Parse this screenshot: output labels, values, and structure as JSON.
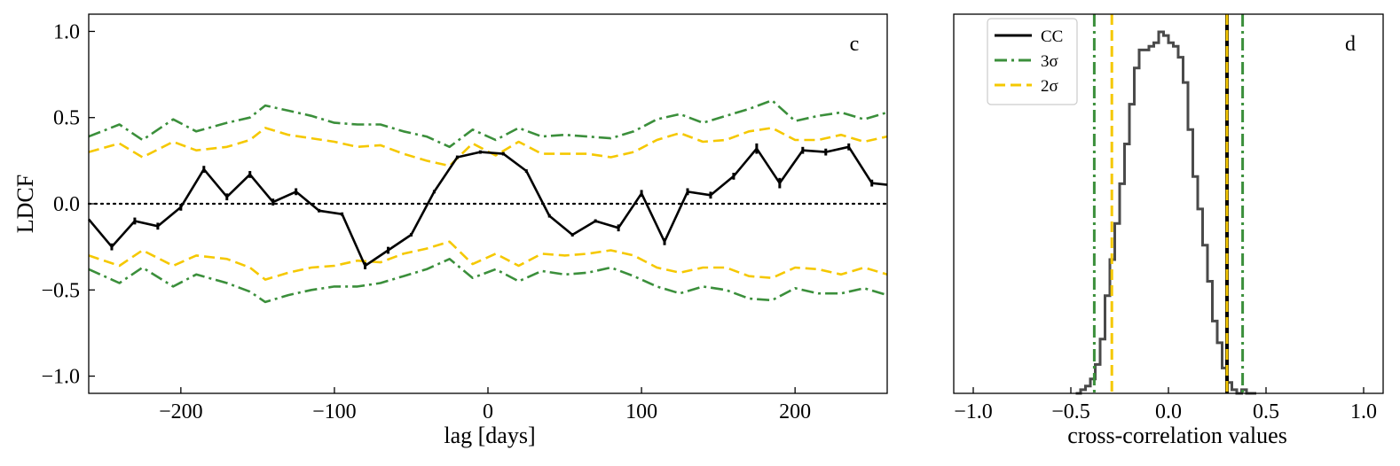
{
  "chart_data": [
    {
      "panel": "c",
      "type": "line",
      "xlabel": "lag [days]",
      "ylabel": "LDCF",
      "xlim": [
        -260,
        260
      ],
      "ylim": [
        -1.1,
        1.1
      ],
      "xticks": [
        -200,
        -100,
        0,
        100,
        200
      ],
      "xtick_labels": [
        "−200",
        "−100",
        "0",
        "100",
        "200"
      ],
      "yticks": [
        -1.0,
        -0.5,
        0.0,
        0.5,
        1.0
      ],
      "ytick_labels": [
        "−1.0",
        "−0.5",
        "0.0",
        "0.5",
        "1.0"
      ],
      "zero_line": 0,
      "series": [
        {
          "name": "LDCF",
          "color": "#000000",
          "style": "solid",
          "x": [
            -260,
            -245,
            -230,
            -215,
            -200,
            -185,
            -170,
            -155,
            -140,
            -125,
            -110,
            -95,
            -80,
            -65,
            -50,
            -35,
            -20,
            -5,
            10,
            25,
            40,
            55,
            70,
            85,
            100,
            115,
            130,
            145,
            160,
            175,
            190,
            205,
            220,
            235,
            250,
            260
          ],
          "y": [
            -0.09,
            -0.25,
            -0.1,
            -0.13,
            -0.02,
            0.2,
            0.04,
            0.17,
            0.01,
            0.07,
            -0.04,
            -0.06,
            -0.36,
            -0.27,
            -0.18,
            0.07,
            0.27,
            0.3,
            0.29,
            0.19,
            -0.07,
            -0.18,
            -0.1,
            -0.14,
            0.06,
            -0.22,
            0.07,
            0.05,
            0.16,
            0.32,
            0.12,
            0.31,
            0.3,
            0.33,
            0.12,
            0.11
          ],
          "yerr": [
            0,
            0.02,
            0.02,
            0.02,
            0.02,
            0.02,
            0.02,
            0.02,
            0.02,
            0.02,
            0.01,
            0.01,
            0.02,
            0.02,
            0.01,
            0.01,
            0.01,
            0.01,
            0.01,
            0.01,
            0.01,
            0.01,
            0.01,
            0.02,
            0.02,
            0.02,
            0.02,
            0.02,
            0.02,
            0.03,
            0.03,
            0.02,
            0.02,
            0.02,
            0.02,
            0
          ]
        },
        {
          "name": "3σ upper",
          "color": "#3b8f3b",
          "style": "dashdot",
          "x": [
            -260,
            -240,
            -225,
            -205,
            -190,
            -170,
            -155,
            -145,
            -130,
            -115,
            -100,
            -85,
            -70,
            -55,
            -40,
            -25,
            -10,
            5,
            20,
            35,
            50,
            65,
            80,
            95,
            110,
            125,
            140,
            155,
            170,
            185,
            200,
            215,
            230,
            245,
            260
          ],
          "y": [
            0.39,
            0.46,
            0.37,
            0.49,
            0.42,
            0.47,
            0.5,
            0.57,
            0.54,
            0.51,
            0.47,
            0.46,
            0.46,
            0.42,
            0.39,
            0.33,
            0.43,
            0.37,
            0.44,
            0.39,
            0.4,
            0.39,
            0.38,
            0.42,
            0.49,
            0.52,
            0.47,
            0.51,
            0.55,
            0.6,
            0.48,
            0.51,
            0.53,
            0.49,
            0.53
          ]
        },
        {
          "name": "2σ upper",
          "color": "#f5c800",
          "style": "dashed",
          "x": [
            -260,
            -240,
            -225,
            -205,
            -190,
            -170,
            -155,
            -145,
            -130,
            -115,
            -100,
            -85,
            -70,
            -55,
            -40,
            -25,
            -10,
            5,
            20,
            35,
            50,
            65,
            80,
            95,
            110,
            125,
            140,
            155,
            170,
            185,
            200,
            215,
            230,
            245,
            260
          ],
          "y": [
            0.3,
            0.35,
            0.27,
            0.36,
            0.31,
            0.33,
            0.37,
            0.44,
            0.4,
            0.38,
            0.36,
            0.33,
            0.34,
            0.29,
            0.25,
            0.22,
            0.35,
            0.28,
            0.36,
            0.29,
            0.29,
            0.29,
            0.27,
            0.3,
            0.37,
            0.41,
            0.36,
            0.37,
            0.42,
            0.44,
            0.37,
            0.37,
            0.4,
            0.36,
            0.39
          ]
        },
        {
          "name": "2σ lower",
          "color": "#f5c800",
          "style": "dashed",
          "x": [
            -260,
            -240,
            -225,
            -205,
            -190,
            -170,
            -155,
            -145,
            -130,
            -115,
            -100,
            -85,
            -70,
            -55,
            -40,
            -25,
            -10,
            5,
            20,
            35,
            50,
            65,
            80,
            95,
            110,
            125,
            140,
            155,
            170,
            185,
            200,
            215,
            230,
            245,
            260
          ],
          "y": [
            -0.3,
            -0.36,
            -0.27,
            -0.36,
            -0.3,
            -0.32,
            -0.37,
            -0.44,
            -0.4,
            -0.37,
            -0.36,
            -0.33,
            -0.34,
            -0.29,
            -0.26,
            -0.22,
            -0.35,
            -0.29,
            -0.36,
            -0.29,
            -0.3,
            -0.29,
            -0.27,
            -0.3,
            -0.37,
            -0.4,
            -0.37,
            -0.37,
            -0.42,
            -0.43,
            -0.37,
            -0.38,
            -0.41,
            -0.37,
            -0.41
          ]
        },
        {
          "name": "3σ lower",
          "color": "#3b8f3b",
          "style": "dashdot",
          "x": [
            -260,
            -240,
            -225,
            -205,
            -190,
            -170,
            -155,
            -145,
            -130,
            -115,
            -100,
            -85,
            -70,
            -55,
            -40,
            -25,
            -10,
            5,
            20,
            35,
            50,
            65,
            80,
            95,
            110,
            125,
            140,
            155,
            170,
            185,
            200,
            215,
            230,
            245,
            260
          ],
          "y": [
            -0.38,
            -0.46,
            -0.37,
            -0.48,
            -0.41,
            -0.46,
            -0.51,
            -0.57,
            -0.53,
            -0.5,
            -0.48,
            -0.48,
            -0.46,
            -0.42,
            -0.38,
            -0.32,
            -0.43,
            -0.38,
            -0.45,
            -0.39,
            -0.41,
            -0.4,
            -0.37,
            -0.42,
            -0.48,
            -0.52,
            -0.48,
            -0.5,
            -0.55,
            -0.56,
            -0.49,
            -0.52,
            -0.52,
            -0.49,
            -0.53
          ]
        }
      ]
    },
    {
      "panel": "d",
      "type": "histogram",
      "xlabel": "cross-correlation values",
      "ylabel": "",
      "xlim": [
        -1.1,
        1.1
      ],
      "xticks": [
        -1.0,
        -0.5,
        0.0,
        0.5,
        1.0
      ],
      "xtick_labels": [
        "−1.0",
        "−0.5",
        "0.0",
        "0.5",
        "1.0"
      ],
      "bin_edges": [
        -0.475,
        -0.45,
        -0.425,
        -0.4,
        -0.375,
        -0.35,
        -0.325,
        -0.3,
        -0.275,
        -0.25,
        -0.225,
        -0.2,
        -0.175,
        -0.15,
        -0.125,
        -0.1,
        -0.075,
        -0.05,
        -0.025,
        0.0,
        0.025,
        0.05,
        0.075,
        0.1,
        0.125,
        0.15,
        0.175,
        0.2,
        0.225,
        0.25,
        0.275,
        0.3,
        0.325,
        0.35,
        0.375,
        0.4,
        0.425,
        0.45
      ],
      "counts_normalized": [
        0.0,
        0.01,
        0.02,
        0.04,
        0.08,
        0.15,
        0.27,
        0.37,
        0.47,
        0.58,
        0.69,
        0.8,
        0.9,
        0.95,
        0.95,
        0.96,
        0.97,
        1.0,
        0.99,
        0.97,
        0.96,
        0.93,
        0.86,
        0.73,
        0.6,
        0.51,
        0.41,
        0.31,
        0.2,
        0.14,
        0.07,
        0.03,
        0.01,
        0.0,
        0.01,
        0.0,
        0.0
      ],
      "hist_color": "#4a4a4a",
      "vlines": [
        {
          "name": "CC",
          "x": 0.3,
          "color": "#000000",
          "style": "dotted"
        },
        {
          "name": "3σ",
          "x": -0.38,
          "color": "#3b8f3b",
          "style": "dashdot"
        },
        {
          "name": "3σ",
          "x": 0.38,
          "color": "#3b8f3b",
          "style": "dashdot"
        },
        {
          "name": "2σ",
          "x": -0.29,
          "color": "#f5c800",
          "style": "dashed"
        },
        {
          "name": "2σ",
          "x": 0.3,
          "color": "#f5c800",
          "style": "dashed"
        }
      ],
      "legend": [
        {
          "label": "CC",
          "color": "#000000",
          "style": "solid"
        },
        {
          "label": "3σ",
          "color": "#3b8f3b",
          "style": "dashdot"
        },
        {
          "label": "2σ",
          "color": "#f5c800",
          "style": "dashed"
        }
      ],
      "legend_position": "top-left"
    }
  ]
}
